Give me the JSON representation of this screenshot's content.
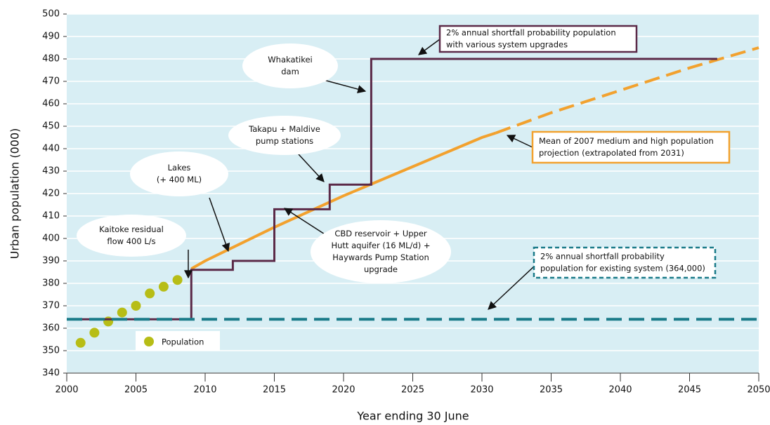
{
  "chart_data": {
    "type": "line",
    "xlabel": "Year ending 30 June",
    "ylabel": "Urban population (000)",
    "xlim": [
      2000,
      2050
    ],
    "xticks": [
      2000,
      2005,
      2010,
      2015,
      2020,
      2025,
      2030,
      2035,
      2040,
      2045,
      2050
    ],
    "ylim": [
      340,
      500
    ],
    "yticks": [
      340,
      350,
      360,
      370,
      380,
      390,
      400,
      410,
      420,
      430,
      440,
      450,
      460,
      470,
      480,
      490,
      500
    ],
    "grid": true,
    "background": "#d8eef4",
    "series": [
      {
        "name": "Population",
        "style": "dots",
        "color": "#b7bd16",
        "x": [
          2001,
          2002,
          2003,
          2004,
          2005,
          2006,
          2007,
          2008
        ],
        "values": [
          353.5,
          358,
          363,
          367,
          370,
          375.5,
          378.5,
          381.5
        ]
      },
      {
        "style": "solid",
        "color": "#f2a12e",
        "x": [
          2009,
          2010,
          2015,
          2020,
          2025,
          2030,
          2031
        ],
        "values": [
          386.5,
          390,
          405,
          419,
          432,
          445,
          447
        ]
      },
      {
        "style": "dashed",
        "color": "#f2a12e",
        "x": [
          2031,
          2035,
          2040,
          2045,
          2050
        ],
        "values": [
          447,
          456,
          466,
          476,
          485
        ]
      },
      {
        "style": "step",
        "color": "#5b2a48",
        "x": [
          2000,
          2009,
          2009,
          2012,
          2012,
          2015,
          2015,
          2019,
          2019,
          2022,
          2022,
          2047
        ],
        "values": [
          364,
          364,
          386,
          386,
          390,
          390,
          413,
          413,
          424,
          424,
          480,
          480
        ]
      },
      {
        "style": "dashed",
        "color": "#1b7b89",
        "x": [
          2000,
          2050
        ],
        "values": [
          364,
          364
        ]
      }
    ],
    "annotations": [
      {
        "shape": "ellipse",
        "lines": [
          "Kaitoke residual",
          "flow 400 L/s"
        ]
      },
      {
        "shape": "ellipse",
        "lines": [
          "Lakes",
          "(+ 400 ML)"
        ]
      },
      {
        "shape": "ellipse",
        "lines": [
          "Takapu + Maldive",
          "pump stations"
        ]
      },
      {
        "shape": "ellipse",
        "lines": [
          "Whakatikei",
          "dam"
        ]
      },
      {
        "shape": "ellipse",
        "lines": [
          "CBD reservoir + Upper",
          "Hutt aquifer (16 ML/d) +",
          "Haywards Pump Station",
          "upgrade"
        ]
      },
      {
        "shape": "box",
        "color": "#5b2a48",
        "lines": [
          "2% annual shortfall probability population",
          "with various system upgrades"
        ]
      },
      {
        "shape": "box",
        "color": "#f2a12e",
        "lines": [
          "Mean of 2007 medium and high population",
          "projection (extrapolated from 2031)"
        ]
      },
      {
        "shape": "dashed-box",
        "color": "#1b7b89",
        "lines": [
          "2% annual shortfall probability",
          "population for existing system (364,000)"
        ]
      }
    ]
  }
}
